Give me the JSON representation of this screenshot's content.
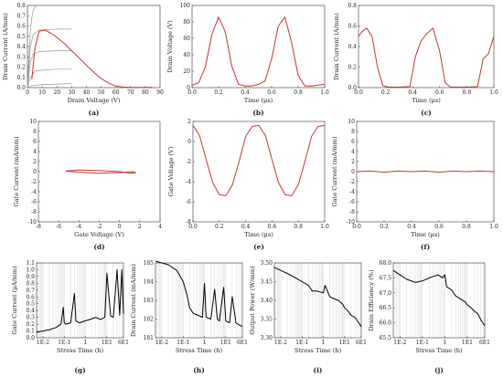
{
  "chart_data": [
    {
      "id": "a",
      "type": "line",
      "panel_label": "(a)",
      "xlabel": "Drain Voltage (V)",
      "ylabel": "Drain Current (A/mm)",
      "xlim": [
        0,
        90
      ],
      "ylim": [
        0,
        0.8
      ],
      "xticks": [
        "0",
        "10",
        "20",
        "30",
        "40",
        "50",
        "60",
        "70",
        "80",
        "90"
      ],
      "yticks": [
        "0.0",
        "0.1",
        "0.2",
        "0.3",
        "0.4",
        "0.5",
        "0.6",
        "0.7",
        "0.8"
      ],
      "grid": false,
      "series": [
        {
          "color": "#999999",
          "x": [
            0,
            1,
            2,
            3,
            4,
            6
          ],
          "y": [
            0,
            0.3,
            0.55,
            0.68,
            0.76,
            0.8
          ]
        },
        {
          "color": "#999999",
          "x": [
            0,
            2,
            4,
            8,
            20,
            30
          ],
          "y": [
            0,
            0.4,
            0.52,
            0.56,
            0.57,
            0.57
          ]
        },
        {
          "color": "#999999",
          "x": [
            0,
            2,
            4,
            8,
            20,
            30
          ],
          "y": [
            0,
            0.25,
            0.33,
            0.35,
            0.36,
            0.36
          ]
        },
        {
          "color": "#999999",
          "x": [
            0,
            2,
            5,
            10,
            20,
            30
          ],
          "y": [
            0,
            0.1,
            0.16,
            0.17,
            0.18,
            0.18
          ]
        },
        {
          "color": "#999999",
          "x": [
            0,
            3,
            10,
            20,
            30
          ],
          "y": [
            0,
            0.02,
            0.03,
            0.035,
            0.04
          ]
        },
        {
          "color": "#c0392b",
          "x": [
            3,
            5,
            8,
            12,
            16,
            20,
            25,
            30,
            35,
            40,
            45,
            50,
            55,
            60,
            65,
            70,
            75,
            80,
            85
          ],
          "y": [
            0.08,
            0.38,
            0.55,
            0.56,
            0.53,
            0.49,
            0.43,
            0.36,
            0.29,
            0.22,
            0.15,
            0.09,
            0.045,
            0.015,
            0.005,
            0.002,
            0.002,
            0.002,
            0.002
          ]
        }
      ]
    },
    {
      "id": "b",
      "type": "line",
      "panel_label": "(b)",
      "xlabel": "Time (μs)",
      "ylabel": "Drain Voltage (V)",
      "xlim": [
        0,
        1
      ],
      "ylim": [
        0,
        100
      ],
      "xticks": [
        "0.0",
        "0.2",
        "0.4",
        "0.6",
        "0.8",
        "1.0"
      ],
      "yticks": [
        "0",
        "20",
        "40",
        "60",
        "80",
        "100"
      ],
      "grid": false,
      "series": [
        {
          "color": "#c0392b",
          "x": [
            0,
            0.05,
            0.1,
            0.15,
            0.2,
            0.25,
            0.3,
            0.35,
            0.4,
            0.45,
            0.5,
            0.55,
            0.6,
            0.65,
            0.7,
            0.75,
            0.8,
            0.85,
            0.9,
            0.95,
            1.0
          ],
          "y": [
            3,
            6,
            25,
            65,
            86,
            68,
            26,
            4,
            2,
            2,
            4,
            8,
            35,
            75,
            86,
            55,
            15,
            2,
            2,
            3,
            4
          ]
        }
      ]
    },
    {
      "id": "c",
      "type": "line",
      "panel_label": "(c)",
      "xlabel": "Time (μs)",
      "ylabel": "Drain Current (A/mm)",
      "xlim": [
        0,
        1
      ],
      "ylim": [
        0,
        0.8
      ],
      "xticks": [
        "0.0",
        "0.2",
        "0.4",
        "0.6",
        "0.8",
        "1.0"
      ],
      "yticks": [
        "0.0",
        "0.2",
        "0.4",
        "0.6",
        "0.8"
      ],
      "grid": false,
      "series": [
        {
          "color": "#c0392b",
          "x": [
            0,
            0.03,
            0.06,
            0.1,
            0.14,
            0.18,
            0.22,
            0.3,
            0.38,
            0.42,
            0.46,
            0.5,
            0.55,
            0.6,
            0.64,
            0.68,
            0.8,
            0.88,
            0.92,
            0.96,
            1.0
          ],
          "y": [
            0.5,
            0.55,
            0.58,
            0.5,
            0.2,
            0.02,
            0.005,
            0.005,
            0.01,
            0.3,
            0.45,
            0.52,
            0.58,
            0.35,
            0.05,
            0.005,
            0.005,
            0.01,
            0.28,
            0.33,
            0.5
          ]
        }
      ]
    },
    {
      "id": "d",
      "type": "line",
      "panel_label": "(d)",
      "xlabel": "Gate Voltage (V)",
      "ylabel": "Gate Current (mA/mm)",
      "xlim": [
        -8,
        4
      ],
      "ylim": [
        -10,
        10
      ],
      "xticks": [
        "-8",
        "-6",
        "-4",
        "-2",
        "0",
        "2",
        "4"
      ],
      "yticks": [
        "-10",
        "-8",
        "-6",
        "-4",
        "-2",
        "0",
        "2",
        "4",
        "6",
        "8",
        "10"
      ],
      "grid": false,
      "series": [
        {
          "color": "#c0392b",
          "x": [
            -5.3,
            -4,
            -2,
            0,
            1.2,
            1.6,
            1.2,
            0,
            -2,
            -4,
            -5.3
          ],
          "y": [
            0.1,
            0.3,
            0.2,
            0,
            -0.3,
            -0.2,
            0,
            -0.2,
            -0.3,
            -0.1,
            0.1
          ]
        }
      ]
    },
    {
      "id": "e",
      "type": "line",
      "panel_label": "(e)",
      "xlabel": "Time (μs)",
      "ylabel": "Gate Voltage (V)",
      "xlim": [
        0,
        1
      ],
      "ylim": [
        -8,
        2
      ],
      "xticks": [
        "0.0",
        "0.2",
        "0.4",
        "0.6",
        "0.8",
        "1.0"
      ],
      "yticks": [
        "-8",
        "-6",
        "-4",
        "-2",
        "0",
        "2"
      ],
      "grid": false,
      "series": [
        {
          "color": "#c0392b",
          "x": [
            0,
            0.05,
            0.1,
            0.15,
            0.2,
            0.25,
            0.3,
            0.35,
            0.4,
            0.45,
            0.5,
            0.55,
            0.6,
            0.65,
            0.7,
            0.75,
            0.8,
            0.85,
            0.9,
            0.95,
            1.0
          ],
          "y": [
            1.6,
            0.6,
            -1.8,
            -4.1,
            -5.3,
            -5.4,
            -4.3,
            -2.0,
            0.5,
            1.5,
            1.6,
            0.6,
            -1.8,
            -4.1,
            -5.3,
            -5.4,
            -4.3,
            -2.0,
            0.5,
            1.5,
            1.6
          ]
        }
      ]
    },
    {
      "id": "f",
      "type": "line",
      "panel_label": "(f)",
      "xlabel": "Time (μs)",
      "ylabel": "Gate Current (mA/mm)",
      "xlim": [
        0,
        1
      ],
      "ylim": [
        -10,
        10
      ],
      "xticks": [
        "0.0",
        "0.2",
        "0.4",
        "0.6",
        "0.8",
        "1.0"
      ],
      "yticks": [
        "-10",
        "-8",
        "-6",
        "-4",
        "-2",
        "0",
        "2",
        "4",
        "6",
        "8",
        "10"
      ],
      "grid": false,
      "series": [
        {
          "color": "#c0392b",
          "x": [
            0,
            0.1,
            0.2,
            0.3,
            0.4,
            0.5,
            0.6,
            0.7,
            0.8,
            0.9,
            1.0
          ],
          "y": [
            0,
            0.1,
            -0.1,
            0.1,
            0,
            0.1,
            -0.1,
            0.1,
            0,
            0.1,
            0
          ]
        }
      ]
    },
    {
      "id": "g",
      "type": "line",
      "panel_label": "(g)",
      "xscale": "log",
      "xlabel": "Stress Time (h)",
      "ylabel": "Gate Current (μA/mm)",
      "xlim": [
        0.005,
        60
      ],
      "ylim": [
        0,
        1.1
      ],
      "xtick_values": [
        0.01,
        0.1,
        1,
        10,
        60
      ],
      "xticks": [
        "1E-2",
        "1E-1",
        "1",
        "1E1",
        "6E1"
      ],
      "yticks": [
        "0.0",
        "0.1",
        "0.2",
        "0.3",
        "0.4",
        "0.5",
        "0.6",
        "0.7",
        "0.8",
        "0.9",
        "1.0",
        "1.1"
      ],
      "grid": true,
      "series": [
        {
          "color": "#000000",
          "x": [
            0.005,
            0.01,
            0.02,
            0.04,
            0.07,
            0.09,
            0.1,
            0.12,
            0.2,
            0.3,
            0.35,
            0.5,
            1,
            2,
            3,
            5,
            8,
            10,
            15,
            20,
            30,
            40,
            50,
            60
          ],
          "y": [
            0.08,
            0.1,
            0.12,
            0.15,
            0.2,
            0.45,
            0.22,
            0.2,
            0.22,
            0.65,
            0.25,
            0.22,
            0.25,
            0.28,
            0.3,
            0.27,
            0.3,
            0.95,
            0.32,
            0.3,
            1.0,
            0.33,
            1.0,
            0.35
          ]
        }
      ]
    },
    {
      "id": "h",
      "type": "line",
      "panel_label": "(h)",
      "xscale": "log",
      "xlabel": "Stress Time (h)",
      "ylabel": "Drain Current (mA/mm)",
      "xlim": [
        0.005,
        60
      ],
      "ylim": [
        181,
        185
      ],
      "xtick_values": [
        0.01,
        0.1,
        1,
        10,
        60
      ],
      "xticks": [
        "1E-2",
        "1E-1",
        "1",
        "1E1",
        "6E1"
      ],
      "yticks": [
        "181",
        "182",
        "183",
        "184",
        "185"
      ],
      "grid": true,
      "series": [
        {
          "color": "#000000",
          "x": [
            0.005,
            0.01,
            0.02,
            0.05,
            0.1,
            0.15,
            0.2,
            0.3,
            0.5,
            0.8,
            1,
            1.2,
            2,
            3,
            4,
            5,
            8,
            10,
            15,
            20,
            30,
            40,
            60
          ],
          "y": [
            185.1,
            185,
            184.9,
            184.6,
            184,
            183.3,
            182.6,
            182.3,
            182.2,
            182.1,
            183.9,
            182.1,
            182,
            183.6,
            182,
            181.9,
            183.7,
            181.9,
            181.8,
            183.2,
            181.8,
            181.7,
            181.6
          ]
        }
      ]
    },
    {
      "id": "i",
      "type": "line",
      "panel_label": "(i)",
      "xscale": "log",
      "xlabel": "Stress Time (h)",
      "ylabel": "Output Power (W/mm)",
      "xlim": [
        0.005,
        60
      ],
      "ylim": [
        3.3,
        3.5
      ],
      "xtick_values": [
        0.01,
        0.1,
        1,
        10,
        60
      ],
      "xticks": [
        "1E-2",
        "1E-1",
        "1",
        "1E1",
        "6E1"
      ],
      "yticks": [
        "3.30",
        "3.35",
        "3.40",
        "3.45",
        "3.50"
      ],
      "grid": true,
      "series": [
        {
          "color": "#000000",
          "x": [
            0.005,
            0.01,
            0.02,
            0.05,
            0.1,
            0.2,
            0.3,
            0.5,
            1,
            1.2,
            2,
            3,
            5,
            8,
            10,
            15,
            20,
            30,
            40,
            60
          ],
          "y": [
            3.488,
            3.48,
            3.472,
            3.46,
            3.45,
            3.44,
            3.425,
            3.425,
            3.42,
            3.44,
            3.41,
            3.405,
            3.4,
            3.39,
            3.38,
            3.37,
            3.36,
            3.355,
            3.345,
            3.33
          ]
        }
      ]
    },
    {
      "id": "j",
      "type": "line",
      "panel_label": "(j)",
      "xscale": "log",
      "xlabel": "Stress Time (h)",
      "ylabel": "Drain Efficiency (%)",
      "xlim": [
        0.005,
        60
      ],
      "ylim": [
        65.5,
        68.0
      ],
      "xtick_values": [
        0.01,
        0.1,
        1,
        10,
        60
      ],
      "xticks": [
        "1E-2",
        "1E-1",
        "1",
        "1E1",
        "6E1"
      ],
      "yticks": [
        "65.5",
        "66.0",
        "66.5",
        "67.0",
        "67.5",
        "68.0"
      ],
      "grid": true,
      "series": [
        {
          "color": "#000000",
          "x": [
            0.005,
            0.01,
            0.02,
            0.05,
            0.1,
            0.2,
            0.3,
            0.5,
            0.8,
            1,
            1.2,
            2,
            3,
            5,
            8,
            10,
            15,
            20,
            30,
            40,
            60
          ],
          "y": [
            67.75,
            67.6,
            67.45,
            67.35,
            67.4,
            67.5,
            67.55,
            67.6,
            67.5,
            67.6,
            67.2,
            67.1,
            66.9,
            66.8,
            66.7,
            66.6,
            66.5,
            66.4,
            66.3,
            66.1,
            65.9
          ]
        }
      ]
    }
  ]
}
